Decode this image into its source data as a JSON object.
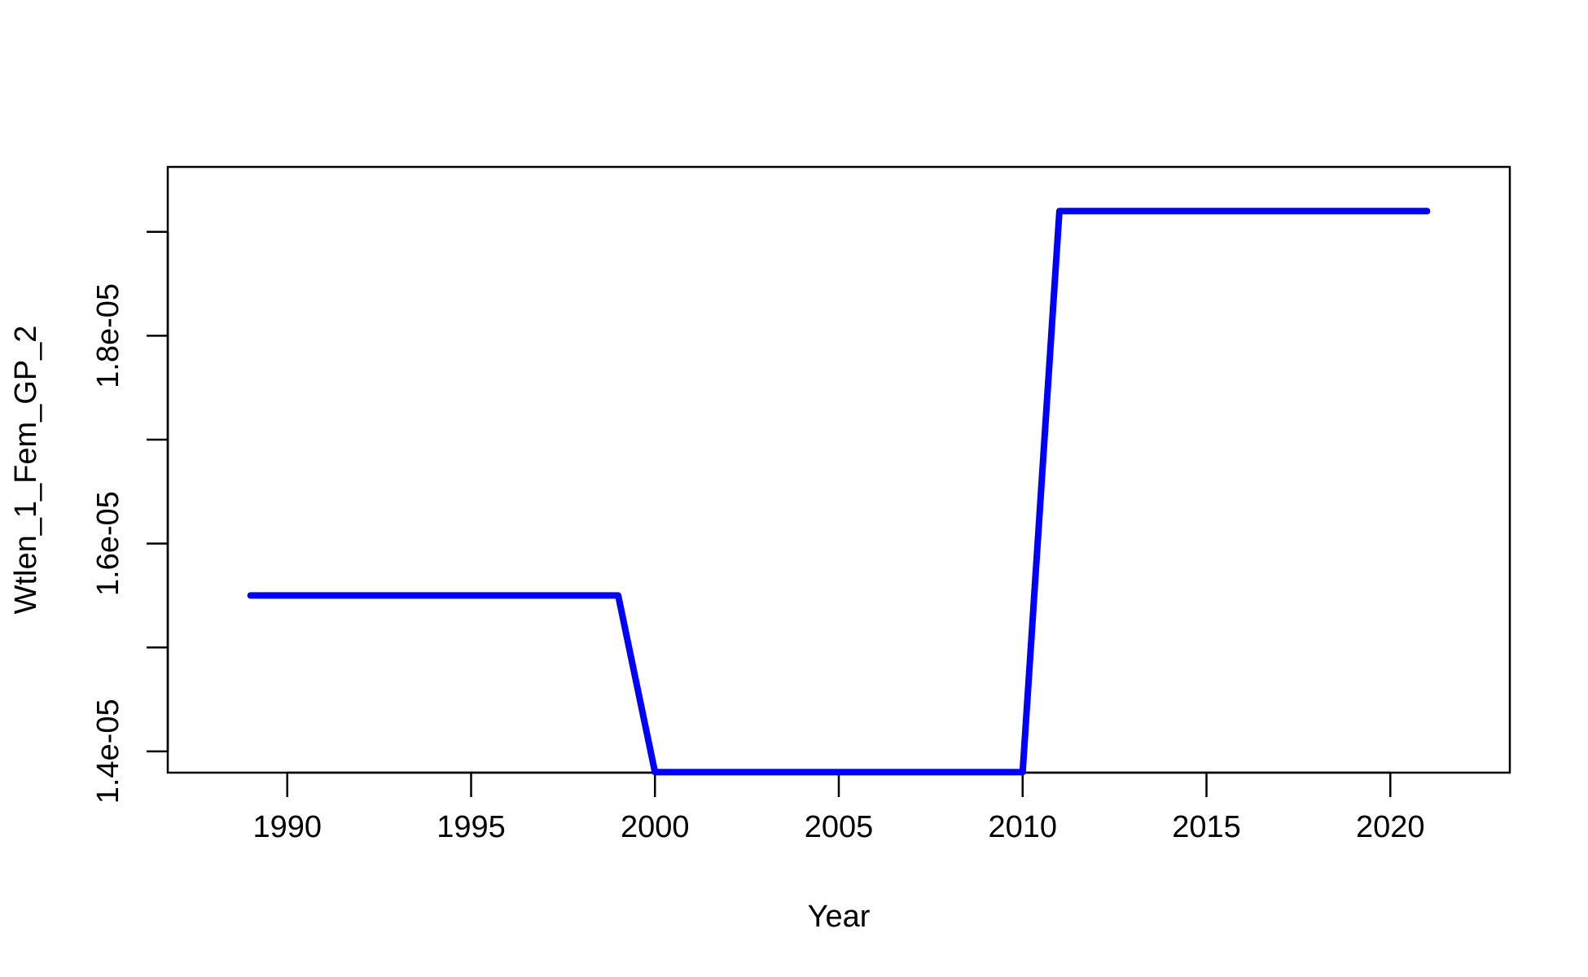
{
  "chart_data": {
    "type": "line",
    "title": "",
    "xlabel": "Year",
    "ylabel": "Wtlen_1_Fem_GP_2",
    "x_ticks": [
      1990,
      1995,
      2000,
      2005,
      2010,
      2015,
      2020
    ],
    "x_tick_labels": [
      "1990",
      "1995",
      "2000",
      "2005",
      "2010",
      "2015",
      "2020"
    ],
    "y_ticks": [
      1.4e-05,
      1.5e-05,
      1.6e-05,
      1.7e-05,
      1.8e-05,
      1.9e-05
    ],
    "y_tick_labels": [
      "1.4e-05",
      "",
      "1.6e-05",
      "",
      "1.8e-05",
      ""
    ],
    "xlim": [
      1986.75,
      2023.25
    ],
    "ylim": [
      1.3795e-05,
      1.9625e-05
    ],
    "grid": false,
    "series": [
      {
        "color": "#0000ff",
        "x": [
          1989,
          1990,
          1991,
          1992,
          1993,
          1994,
          1995,
          1996,
          1997,
          1998,
          1999,
          2000,
          2001,
          2002,
          2003,
          2004,
          2005,
          2006,
          2007,
          2008,
          2009,
          2010,
          2011,
          2012,
          2013,
          2014,
          2015,
          2016,
          2017,
          2018,
          2019,
          2020,
          2021
        ],
        "y": [
          1.55e-05,
          1.55e-05,
          1.55e-05,
          1.55e-05,
          1.55e-05,
          1.55e-05,
          1.55e-05,
          1.55e-05,
          1.55e-05,
          1.55e-05,
          1.55e-05,
          1.38e-05,
          1.38e-05,
          1.38e-05,
          1.38e-05,
          1.38e-05,
          1.38e-05,
          1.38e-05,
          1.38e-05,
          1.38e-05,
          1.38e-05,
          1.38e-05,
          1.92e-05,
          1.92e-05,
          1.92e-05,
          1.92e-05,
          1.92e-05,
          1.92e-05,
          1.92e-05,
          1.92e-05,
          1.92e-05,
          1.92e-05,
          1.92e-05
        ]
      }
    ]
  }
}
